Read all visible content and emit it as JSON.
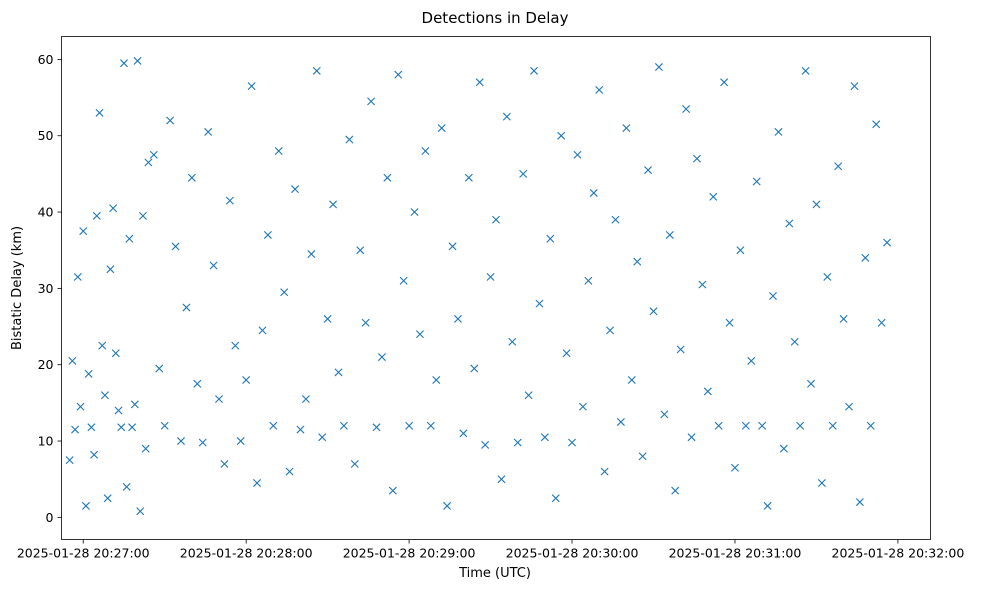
{
  "chart_data": {
    "type": "scatter",
    "title": "Detections in Delay",
    "xlabel": "Time (UTC)",
    "ylabel": "Bistatic Delay (km)",
    "marker": "x",
    "color": "#1f77b4",
    "grid": false,
    "legend": null,
    "xlim": [
      "2025-01-28 20:26:52",
      "2025-01-28 20:32:12"
    ],
    "ylim": [
      -2.9,
      63.0
    ],
    "x_ticks": [
      {
        "value": "2025-01-28 20:27:00",
        "label": "2025-01-28 20:27:00"
      },
      {
        "value": "2025-01-28 20:28:00",
        "label": "2025-01-28 20:28:00"
      },
      {
        "value": "2025-01-28 20:29:00",
        "label": "2025-01-28 20:29:00"
      },
      {
        "value": "2025-01-28 20:30:00",
        "label": "2025-01-28 20:30:00"
      },
      {
        "value": "2025-01-28 20:31:00",
        "label": "2025-01-28 20:31:00"
      },
      {
        "value": "2025-01-28 20:32:00",
        "label": "2025-01-28 20:32:00"
      }
    ],
    "y_ticks": [
      0,
      10,
      20,
      30,
      40,
      50,
      60
    ],
    "series": [
      {
        "x": [
          "2025-01-28 20:26:55",
          "2025-01-28 20:26:56",
          "2025-01-28 20:26:57",
          "2025-01-28 20:26:58",
          "2025-01-28 20:26:59",
          "2025-01-28 20:27:00",
          "2025-01-28 20:27:01",
          "2025-01-28 20:27:02",
          "2025-01-28 20:27:03",
          "2025-01-28 20:27:04",
          "2025-01-28 20:27:05",
          "2025-01-28 20:27:06",
          "2025-01-28 20:27:07",
          "2025-01-28 20:27:08",
          "2025-01-28 20:27:09",
          "2025-01-28 20:27:10",
          "2025-01-28 20:27:11",
          "2025-01-28 20:27:12",
          "2025-01-28 20:27:13",
          "2025-01-28 20:27:14",
          "2025-01-28 20:27:15",
          "2025-01-28 20:27:16",
          "2025-01-28 20:27:17",
          "2025-01-28 20:27:18",
          "2025-01-28 20:27:19",
          "2025-01-28 20:27:20",
          "2025-01-28 20:27:21",
          "2025-01-28 20:27:22",
          "2025-01-28 20:27:23",
          "2025-01-28 20:27:24",
          "2025-01-28 20:27:26",
          "2025-01-28 20:27:28",
          "2025-01-28 20:27:30",
          "2025-01-28 20:27:32",
          "2025-01-28 20:27:34",
          "2025-01-28 20:27:36",
          "2025-01-28 20:27:38",
          "2025-01-28 20:27:40",
          "2025-01-28 20:27:42",
          "2025-01-28 20:27:44",
          "2025-01-28 20:27:46",
          "2025-01-28 20:27:48",
          "2025-01-28 20:27:50",
          "2025-01-28 20:27:52",
          "2025-01-28 20:27:54",
          "2025-01-28 20:27:56",
          "2025-01-28 20:27:58",
          "2025-01-28 20:28:00",
          "2025-01-28 20:28:02",
          "2025-01-28 20:28:04",
          "2025-01-28 20:28:06",
          "2025-01-28 20:28:08",
          "2025-01-28 20:28:10",
          "2025-01-28 20:28:12",
          "2025-01-28 20:28:14",
          "2025-01-28 20:28:16",
          "2025-01-28 20:28:18",
          "2025-01-28 20:28:20",
          "2025-01-28 20:28:22",
          "2025-01-28 20:28:24",
          "2025-01-28 20:28:26",
          "2025-01-28 20:28:28",
          "2025-01-28 20:28:30",
          "2025-01-28 20:28:32",
          "2025-01-28 20:28:34",
          "2025-01-28 20:28:36",
          "2025-01-28 20:28:38",
          "2025-01-28 20:28:40",
          "2025-01-28 20:28:42",
          "2025-01-28 20:28:44",
          "2025-01-28 20:28:46",
          "2025-01-28 20:28:48",
          "2025-01-28 20:28:50",
          "2025-01-28 20:28:52",
          "2025-01-28 20:28:54",
          "2025-01-28 20:28:56",
          "2025-01-28 20:28:58",
          "2025-01-28 20:29:00",
          "2025-01-28 20:29:02",
          "2025-01-28 20:29:04",
          "2025-01-28 20:29:06",
          "2025-01-28 20:29:08",
          "2025-01-28 20:29:10",
          "2025-01-28 20:29:12",
          "2025-01-28 20:29:14",
          "2025-01-28 20:29:16",
          "2025-01-28 20:29:18",
          "2025-01-28 20:29:20",
          "2025-01-28 20:29:22",
          "2025-01-28 20:29:24",
          "2025-01-28 20:29:26",
          "2025-01-28 20:29:28",
          "2025-01-28 20:29:30",
          "2025-01-28 20:29:32",
          "2025-01-28 20:29:34",
          "2025-01-28 20:29:36",
          "2025-01-28 20:29:38",
          "2025-01-28 20:29:40",
          "2025-01-28 20:29:42",
          "2025-01-28 20:29:44",
          "2025-01-28 20:29:46",
          "2025-01-28 20:29:48",
          "2025-01-28 20:29:50",
          "2025-01-28 20:29:52",
          "2025-01-28 20:29:54",
          "2025-01-28 20:29:56",
          "2025-01-28 20:29:58",
          "2025-01-28 20:30:00",
          "2025-01-28 20:30:02",
          "2025-01-28 20:30:04",
          "2025-01-28 20:30:06",
          "2025-01-28 20:30:08",
          "2025-01-28 20:30:10",
          "2025-01-28 20:30:12",
          "2025-01-28 20:30:14",
          "2025-01-28 20:30:16",
          "2025-01-28 20:30:18",
          "2025-01-28 20:30:20",
          "2025-01-28 20:30:22",
          "2025-01-28 20:30:24",
          "2025-01-28 20:30:26",
          "2025-01-28 20:30:28",
          "2025-01-28 20:30:30",
          "2025-01-28 20:30:32",
          "2025-01-28 20:30:34",
          "2025-01-28 20:30:36",
          "2025-01-28 20:30:38",
          "2025-01-28 20:30:40",
          "2025-01-28 20:30:42",
          "2025-01-28 20:30:44",
          "2025-01-28 20:30:46",
          "2025-01-28 20:30:48",
          "2025-01-28 20:30:50",
          "2025-01-28 20:30:52",
          "2025-01-28 20:30:54",
          "2025-01-28 20:30:56",
          "2025-01-28 20:30:58",
          "2025-01-28 20:31:00",
          "2025-01-28 20:31:02",
          "2025-01-28 20:31:04",
          "2025-01-28 20:31:06",
          "2025-01-28 20:31:08",
          "2025-01-28 20:31:10",
          "2025-01-28 20:31:12",
          "2025-01-28 20:31:14",
          "2025-01-28 20:31:16",
          "2025-01-28 20:31:18",
          "2025-01-28 20:31:20",
          "2025-01-28 20:31:22",
          "2025-01-28 20:31:24",
          "2025-01-28 20:31:26",
          "2025-01-28 20:31:28",
          "2025-01-28 20:31:30",
          "2025-01-28 20:31:32",
          "2025-01-28 20:31:34",
          "2025-01-28 20:31:36",
          "2025-01-28 20:31:38",
          "2025-01-28 20:31:40",
          "2025-01-28 20:31:42",
          "2025-01-28 20:31:44",
          "2025-01-28 20:31:46",
          "2025-01-28 20:31:48",
          "2025-01-28 20:31:50",
          "2025-01-28 20:31:52",
          "2025-01-28 20:31:54",
          "2025-01-28 20:31:56"
        ],
        "y": [
          7.5,
          20.5,
          11.5,
          31.5,
          14.5,
          37.5,
          1.5,
          18.8,
          11.8,
          8.2,
          39.5,
          53.0,
          22.5,
          16.0,
          2.5,
          32.5,
          40.5,
          21.5,
          14.0,
          11.8,
          59.5,
          4.0,
          36.5,
          11.8,
          14.8,
          59.8,
          0.8,
          39.5,
          9.0,
          46.5,
          47.5,
          19.5,
          12.0,
          52.0,
          35.5,
          10.0,
          27.5,
          44.5,
          17.5,
          9.8,
          50.5,
          33.0,
          15.5,
          7.0,
          41.5,
          22.5,
          10.0,
          18.0,
          56.5,
          4.5,
          24.5,
          37.0,
          12.0,
          48.0,
          29.5,
          6.0,
          43.0,
          11.5,
          15.5,
          34.5,
          58.5,
          10.5,
          26.0,
          41.0,
          19.0,
          12.0,
          49.5,
          7.0,
          35.0,
          25.5,
          54.5,
          11.8,
          21.0,
          44.5,
          3.5,
          58.0,
          31.0,
          12.0,
          40.0,
          24.0,
          48.0,
          12.0,
          18.0,
          51.0,
          1.5,
          35.5,
          26.0,
          11.0,
          44.5,
          19.5,
          57.0,
          9.5,
          31.5,
          39.0,
          5.0,
          52.5,
          23.0,
          9.8,
          45.0,
          16.0,
          58.5,
          28.0,
          10.5,
          36.5,
          2.5,
          50.0,
          21.5,
          9.8,
          47.5,
          14.5,
          31.0,
          42.5,
          56.0,
          6.0,
          24.5,
          39.0,
          12.5,
          51.0,
          18.0,
          33.5,
          8.0,
          45.5,
          27.0,
          59.0,
          13.5,
          37.0,
          3.5,
          22.0,
          53.5,
          10.5,
          47.0,
          30.5,
          16.5,
          42.0,
          12.0,
          57.0,
          25.5,
          6.5,
          35.0,
          12.0,
          20.5,
          44.0,
          12.0,
          1.5,
          29.0,
          50.5,
          9.0,
          38.5,
          23.0,
          12.0,
          58.5,
          17.5,
          41.0,
          4.5,
          31.5,
          12.0,
          46.0,
          26.0,
          14.5,
          56.5,
          2.0,
          34.0,
          12.0,
          51.5,
          25.5,
          36.0
        ]
      }
    ]
  }
}
